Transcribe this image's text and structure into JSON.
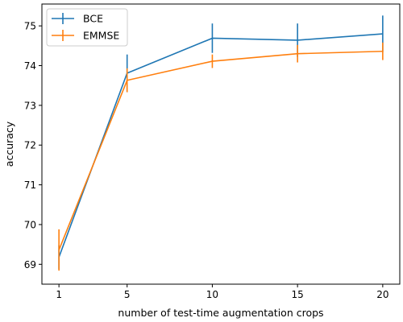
{
  "chart_data": {
    "type": "line",
    "title": "",
    "xlabel": "number of test-time augmentation crops",
    "ylabel": "accuracy",
    "x": [
      1,
      5,
      10,
      15,
      20
    ],
    "xticks": [
      "1",
      "5",
      "10",
      "15",
      "20"
    ],
    "yticks": [
      "69",
      "70",
      "71",
      "72",
      "73",
      "74",
      "75"
    ],
    "xlim": [
      0,
      21
    ],
    "ylim": [
      68.5,
      75.55
    ],
    "grid": false,
    "legend_position": "top-left",
    "series": [
      {
        "name": "BCE",
        "color": "#1f77b4",
        "values": [
          69.18,
          73.81,
          74.69,
          74.64,
          74.8
        ],
        "errors": [
          0.3,
          0.47,
          0.37,
          0.42,
          0.46
        ]
      },
      {
        "name": "EMMSE",
        "color": "#ff7f0e",
        "values": [
          69.36,
          73.63,
          74.11,
          74.3,
          74.36
        ],
        "errors": [
          0.52,
          0.3,
          0.17,
          0.22,
          0.22
        ]
      }
    ]
  }
}
